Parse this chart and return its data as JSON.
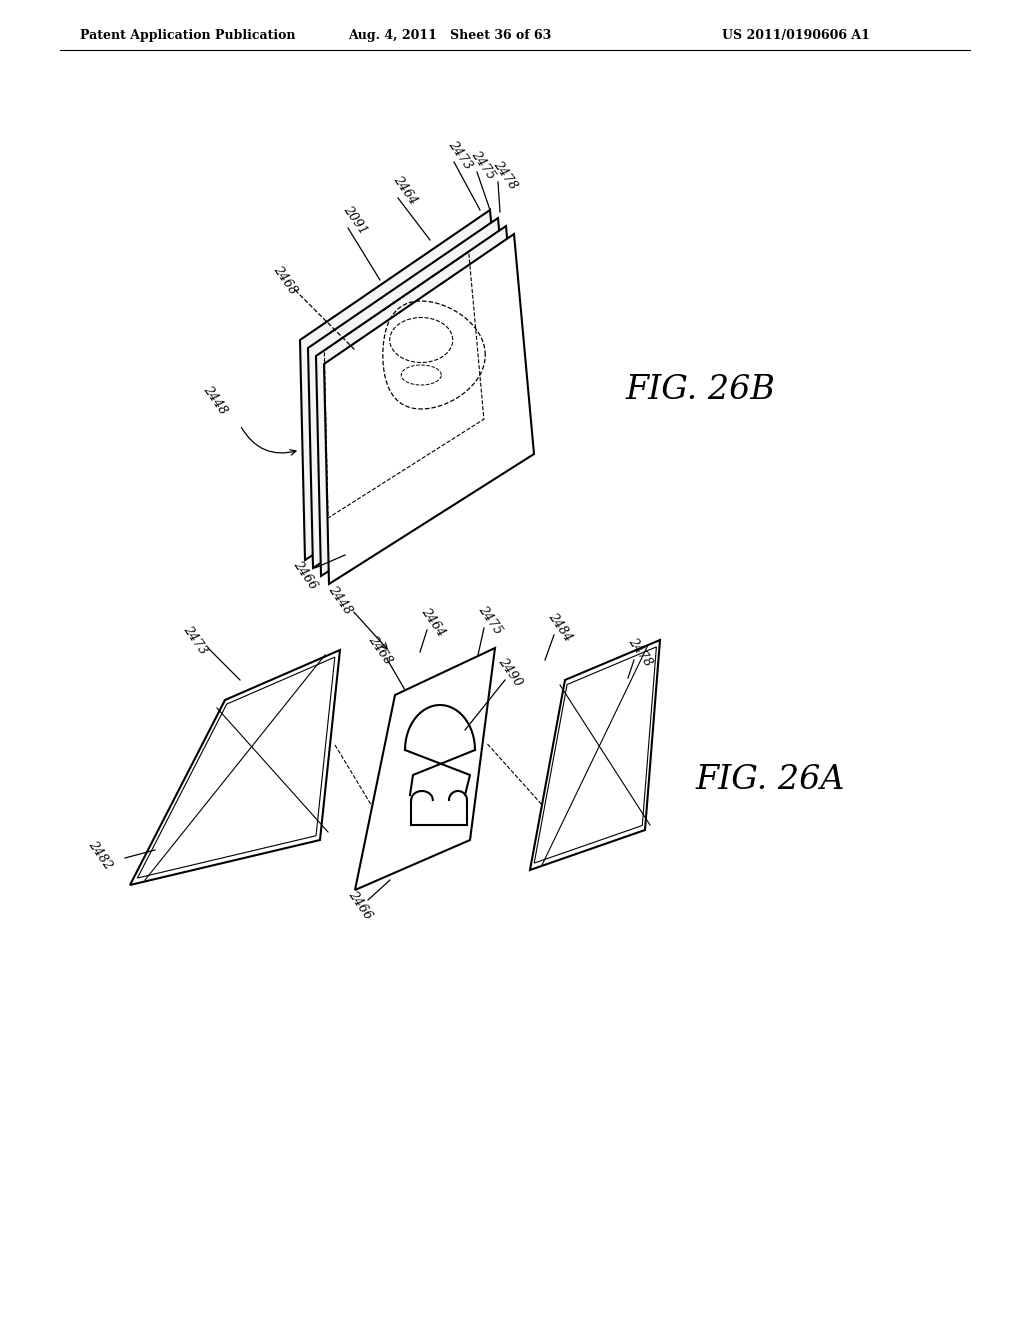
{
  "bg_color": "#ffffff",
  "header_left": "Patent Application Publication",
  "header_mid": "Aug. 4, 2011   Sheet 36 of 63",
  "header_right": "US 2011/0190606 A1",
  "fig_label_26B": "FIG. 26B",
  "fig_label_26A": "FIG. 26A"
}
